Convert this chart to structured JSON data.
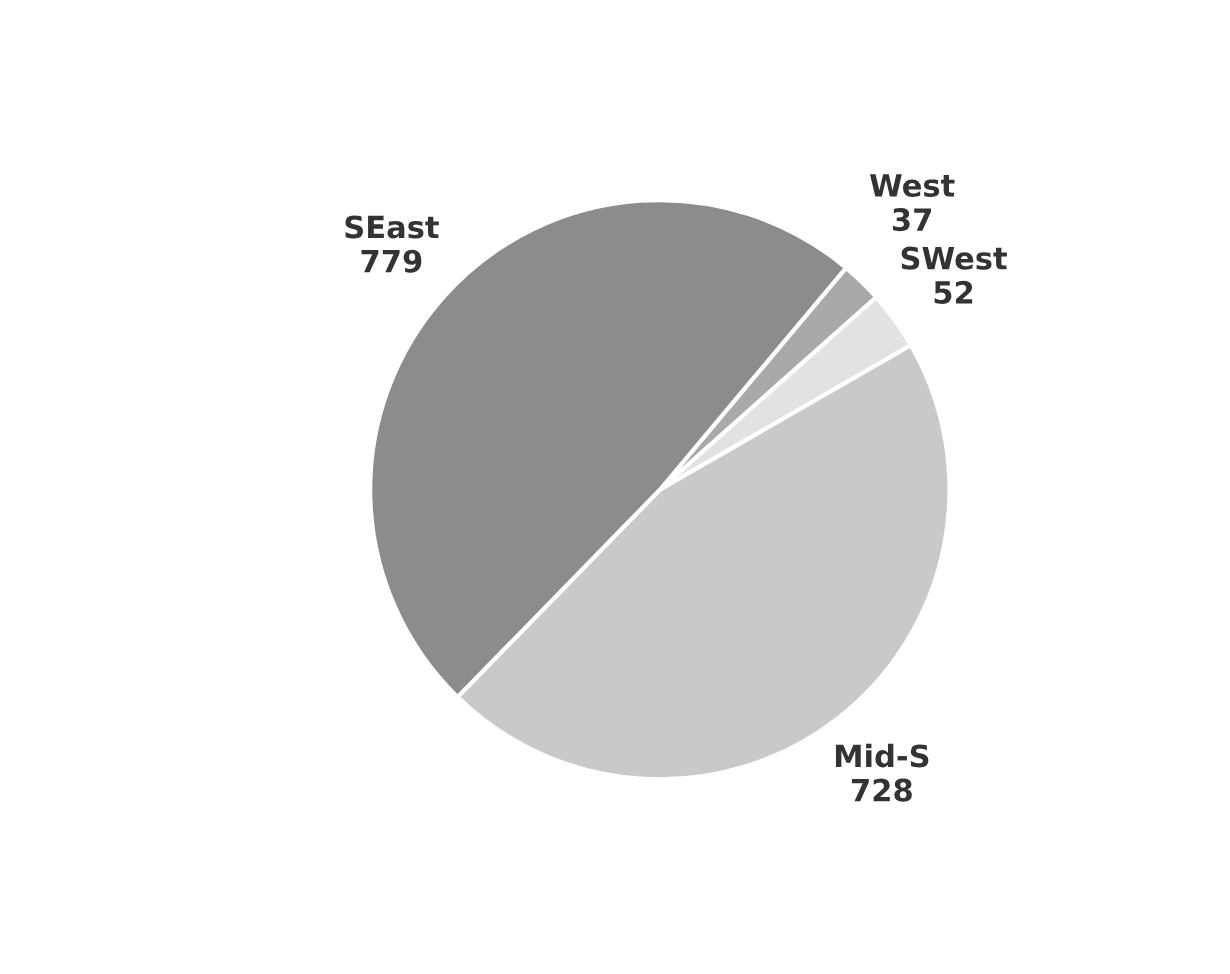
{
  "chart_data": {
    "type": "pie",
    "categories": [
      "West",
      "SWest",
      "Mid-S",
      "SEast"
    ],
    "values": [
      37,
      52,
      728,
      779
    ],
    "colors": [
      "#a9a9a9",
      "#e2e2e2",
      "#c9c9c9",
      "#8c8c8c"
    ],
    "data_labels": true
  }
}
